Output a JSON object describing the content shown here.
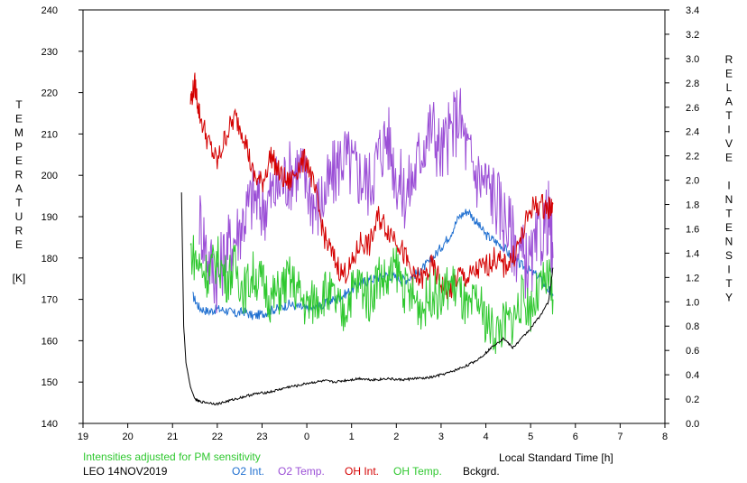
{
  "chart_data": {
    "type": "line",
    "xlabel": "Local Standard Time [h]",
    "ylabel_left_letters": [
      "T",
      "E",
      "M",
      "P",
      "E",
      "R",
      "A",
      "T",
      "U",
      "R",
      "E"
    ],
    "ylabel_left_unit": "[K]",
    "ylabel_right_letters": [
      "R",
      "E",
      "L",
      "A",
      "T",
      "I",
      "V",
      "E",
      "",
      "I",
      "N",
      "T",
      "E",
      "N",
      "S",
      "I",
      "T",
      "Y"
    ],
    "xlim": [
      19,
      32
    ],
    "ylim_left": [
      140,
      240
    ],
    "ylim_right": [
      0.0,
      3.4
    ],
    "x_ticks": [
      "19",
      "20",
      "21",
      "22",
      "23",
      "0",
      "1",
      "2",
      "3",
      "4",
      "5",
      "6",
      "7",
      "8"
    ],
    "y_ticks_left": [
      "140",
      "150",
      "160",
      "170",
      "180",
      "190",
      "200",
      "210",
      "220",
      "230",
      "240"
    ],
    "y_ticks_right": [
      "0.0",
      "0.2",
      "0.4",
      "0.6",
      "0.8",
      "1.0",
      "1.2",
      "1.4",
      "1.6",
      "1.8",
      "2.0",
      "2.2",
      "2.4",
      "2.6",
      "2.8",
      "3.0",
      "3.2",
      "3.4"
    ],
    "note": "Intensities adjusted for PM sensitivity",
    "station": "LEO 14NOV2019",
    "grid": false,
    "series": [
      {
        "name": "O2 Int.",
        "color": "#1f6fd0",
        "axis": "right",
        "x": [
          21.45,
          21.6,
          21.8,
          22.0,
          22.2,
          22.4,
          22.6,
          22.8,
          23.0,
          23.2,
          23.4,
          23.6,
          23.8,
          24.0,
          24.2,
          24.4,
          24.6,
          24.8,
          25.0,
          25.2,
          25.4,
          25.6,
          25.8,
          26.0,
          26.2,
          26.4,
          26.6,
          26.8,
          27.0,
          27.2,
          27.4,
          27.6,
          27.8,
          28.0,
          28.2,
          28.4,
          28.6,
          28.8,
          29.0,
          29.2,
          29.4,
          29.5
        ],
        "y": [
          1.05,
          0.95,
          0.92,
          0.94,
          0.93,
          0.9,
          0.92,
          0.88,
          0.9,
          0.93,
          0.95,
          0.98,
          0.96,
          0.94,
          0.95,
          0.98,
          1.02,
          1.05,
          1.1,
          1.15,
          1.18,
          1.2,
          1.22,
          1.2,
          1.18,
          1.22,
          1.28,
          1.35,
          1.45,
          1.55,
          1.7,
          1.75,
          1.65,
          1.55,
          1.5,
          1.45,
          1.35,
          1.3,
          1.25,
          1.2,
          1.1,
          1.05
        ]
      },
      {
        "name": "O2 Temp.",
        "color": "#9b4fd6",
        "axis": "left",
        "x": [
          21.6,
          21.8,
          22.0,
          22.2,
          22.4,
          22.6,
          22.8,
          23.0,
          23.2,
          23.4,
          23.6,
          23.8,
          24.0,
          24.2,
          24.4,
          24.6,
          24.8,
          25.0,
          25.2,
          25.4,
          25.6,
          25.8,
          26.0,
          26.2,
          26.4,
          26.6,
          26.8,
          27.0,
          27.2,
          27.4,
          27.6,
          27.8,
          28.0,
          28.2,
          28.4,
          28.6,
          28.8,
          29.0,
          29.2,
          29.4,
          29.5
        ],
        "y": [
          190,
          180,
          175,
          182,
          185,
          190,
          195,
          192,
          195,
          198,
          200,
          202,
          198,
          192,
          195,
          200,
          205,
          202,
          200,
          198,
          205,
          210,
          200,
          195,
          200,
          208,
          212,
          205,
          210,
          215,
          205,
          200,
          198,
          195,
          190,
          185,
          180,
          178,
          185,
          190,
          180
        ]
      },
      {
        "name": "OH Int.",
        "color": "#d40000",
        "axis": "left",
        "x": [
          21.4,
          21.5,
          21.6,
          21.8,
          22.0,
          22.2,
          22.4,
          22.6,
          22.8,
          23.0,
          23.2,
          23.4,
          23.6,
          23.8,
          24.0,
          24.2,
          24.4,
          24.6,
          24.8,
          25.0,
          25.2,
          25.4,
          25.6,
          25.8,
          26.0,
          26.2,
          26.4,
          26.6,
          26.8,
          27.0,
          27.2,
          27.4,
          27.6,
          27.8,
          28.0,
          28.2,
          28.4,
          28.6,
          28.8,
          29.0,
          29.2,
          29.4,
          29.5
        ],
        "y": [
          218,
          222,
          215,
          208,
          203,
          210,
          214,
          210,
          200,
          198,
          205,
          200,
          198,
          202,
          204,
          195,
          185,
          180,
          176,
          178,
          184,
          183,
          190,
          187,
          185,
          180,
          175,
          175,
          178,
          174,
          172,
          176,
          175,
          177,
          178,
          180,
          178,
          180,
          185,
          192,
          193,
          192,
          193
        ]
      },
      {
        "name": "OH Temp.",
        "color": "#2fc82f",
        "axis": "left",
        "x": [
          21.4,
          21.6,
          21.8,
          22.0,
          22.2,
          22.4,
          22.6,
          22.8,
          23.0,
          23.2,
          23.4,
          23.6,
          23.8,
          24.0,
          24.2,
          24.4,
          24.6,
          24.8,
          25.0,
          25.2,
          25.4,
          25.6,
          25.8,
          26.0,
          26.2,
          26.4,
          26.6,
          26.8,
          27.0,
          27.2,
          27.4,
          27.6,
          27.8,
          28.0,
          28.2,
          28.4,
          28.6,
          28.8,
          29.0,
          29.2,
          29.4,
          29.5
        ],
        "y": [
          182,
          178,
          176,
          180,
          175,
          178,
          172,
          176,
          174,
          170,
          172,
          175,
          172,
          168,
          170,
          172,
          170,
          166,
          172,
          174,
          170,
          176,
          174,
          178,
          172,
          170,
          168,
          172,
          170,
          174,
          172,
          166,
          170,
          165,
          162,
          164,
          165,
          170,
          168,
          172,
          175,
          170
        ]
      },
      {
        "name": "Bckgrd.",
        "color": "#000000",
        "axis": "right",
        "x": [
          21.2,
          21.25,
          21.3,
          21.35,
          21.4,
          21.5,
          21.6,
          21.8,
          22.0,
          22.2,
          22.4,
          22.6,
          22.8,
          23.0,
          23.2,
          23.4,
          23.6,
          23.8,
          24.0,
          24.2,
          24.4,
          24.6,
          24.8,
          25.0,
          25.2,
          25.4,
          25.6,
          25.8,
          26.0,
          26.2,
          26.4,
          26.6,
          26.8,
          27.0,
          27.2,
          27.4,
          27.6,
          27.8,
          28.0,
          28.2,
          28.4,
          28.6,
          28.8,
          29.0,
          29.2,
          29.4,
          29.5
        ],
        "y": [
          1.9,
          0.8,
          0.5,
          0.4,
          0.3,
          0.2,
          0.18,
          0.17,
          0.16,
          0.18,
          0.2,
          0.22,
          0.24,
          0.25,
          0.26,
          0.28,
          0.3,
          0.31,
          0.33,
          0.34,
          0.35,
          0.34,
          0.35,
          0.36,
          0.37,
          0.36,
          0.36,
          0.37,
          0.36,
          0.36,
          0.37,
          0.37,
          0.38,
          0.4,
          0.42,
          0.45,
          0.48,
          0.52,
          0.58,
          0.65,
          0.7,
          0.62,
          0.7,
          0.78,
          0.88,
          1.0,
          1.28
        ]
      }
    ]
  }
}
